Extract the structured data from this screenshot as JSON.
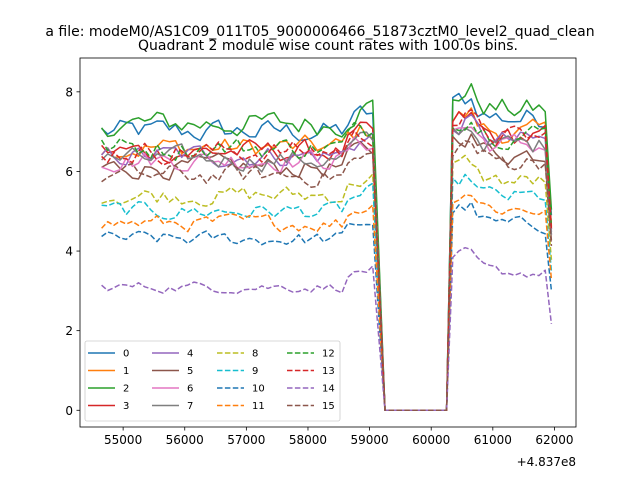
{
  "chart_data": {
    "type": "line",
    "suptitle": "a file: modeM0/AS1C09_011T05_9000006466_51873cztM0_level2_quad_clean",
    "title": "Quadrant 2 module wise count rates with 100.0s bins.",
    "xlabel": "",
    "ylabel": "",
    "offset_text": "+4.837e8",
    "xlim": [
      54300,
      62350
    ],
    "ylim": [
      -0.42,
      8.85
    ],
    "xticks": [
      55000,
      56000,
      57000,
      58000,
      59000,
      60000,
      61000,
      62000
    ],
    "xtick_labels": [
      "55000",
      "56000",
      "57000",
      "58000",
      "59000",
      "60000",
      "61000",
      "62000"
    ],
    "yticks": [
      0,
      2,
      4,
      6,
      8
    ],
    "ytick_labels": [
      "0",
      "2",
      "4",
      "6",
      "8"
    ],
    "legend": {
      "location": "lower-left",
      "columns": 4
    },
    "x_segments": {
      "start": 54650,
      "step": 100,
      "seg1_end": 59050,
      "gap": [
        59250,
        60250
      ],
      "seg2_start": 60350,
      "end": 61950
    },
    "series": [
      {
        "name": "0",
        "color": "#1f77b4",
        "dash": "solid",
        "level": 7.0
      },
      {
        "name": "1",
        "color": "#ff7f0e",
        "dash": "solid",
        "level": 6.6
      },
      {
        "name": "2",
        "color": "#2ca02c",
        "dash": "solid",
        "level": 7.2
      },
      {
        "name": "3",
        "color": "#d62728",
        "dash": "solid",
        "level": 6.5
      },
      {
        "name": "4",
        "color": "#9467bd",
        "dash": "solid",
        "level": 6.4
      },
      {
        "name": "5",
        "color": "#8c564b",
        "dash": "solid",
        "level": 6.1
      },
      {
        "name": "6",
        "color": "#e377c2",
        "dash": "solid",
        "level": 6.3
      },
      {
        "name": "7",
        "color": "#7f7f7f",
        "dash": "solid",
        "level": 6.3
      },
      {
        "name": "8",
        "color": "#bcbd22",
        "dash": "dashed",
        "level": 5.4
      },
      {
        "name": "9",
        "color": "#17becf",
        "dash": "dashed",
        "level": 5.0
      },
      {
        "name": "10",
        "color": "#1f77b4",
        "dash": "dashed",
        "level": 4.3
      },
      {
        "name": "11",
        "color": "#ff7f0e",
        "dash": "dashed",
        "level": 4.7
      },
      {
        "name": "12",
        "color": "#2ca02c",
        "dash": "dashed",
        "level": 6.6
      },
      {
        "name": "13",
        "color": "#d62728",
        "dash": "dashed",
        "level": 6.5
      },
      {
        "name": "14",
        "color": "#9467bd",
        "dash": "dashed",
        "level": 3.1
      },
      {
        "name": "15",
        "color": "#8c564b",
        "dash": "dashed",
        "level": 5.9
      }
    ]
  }
}
